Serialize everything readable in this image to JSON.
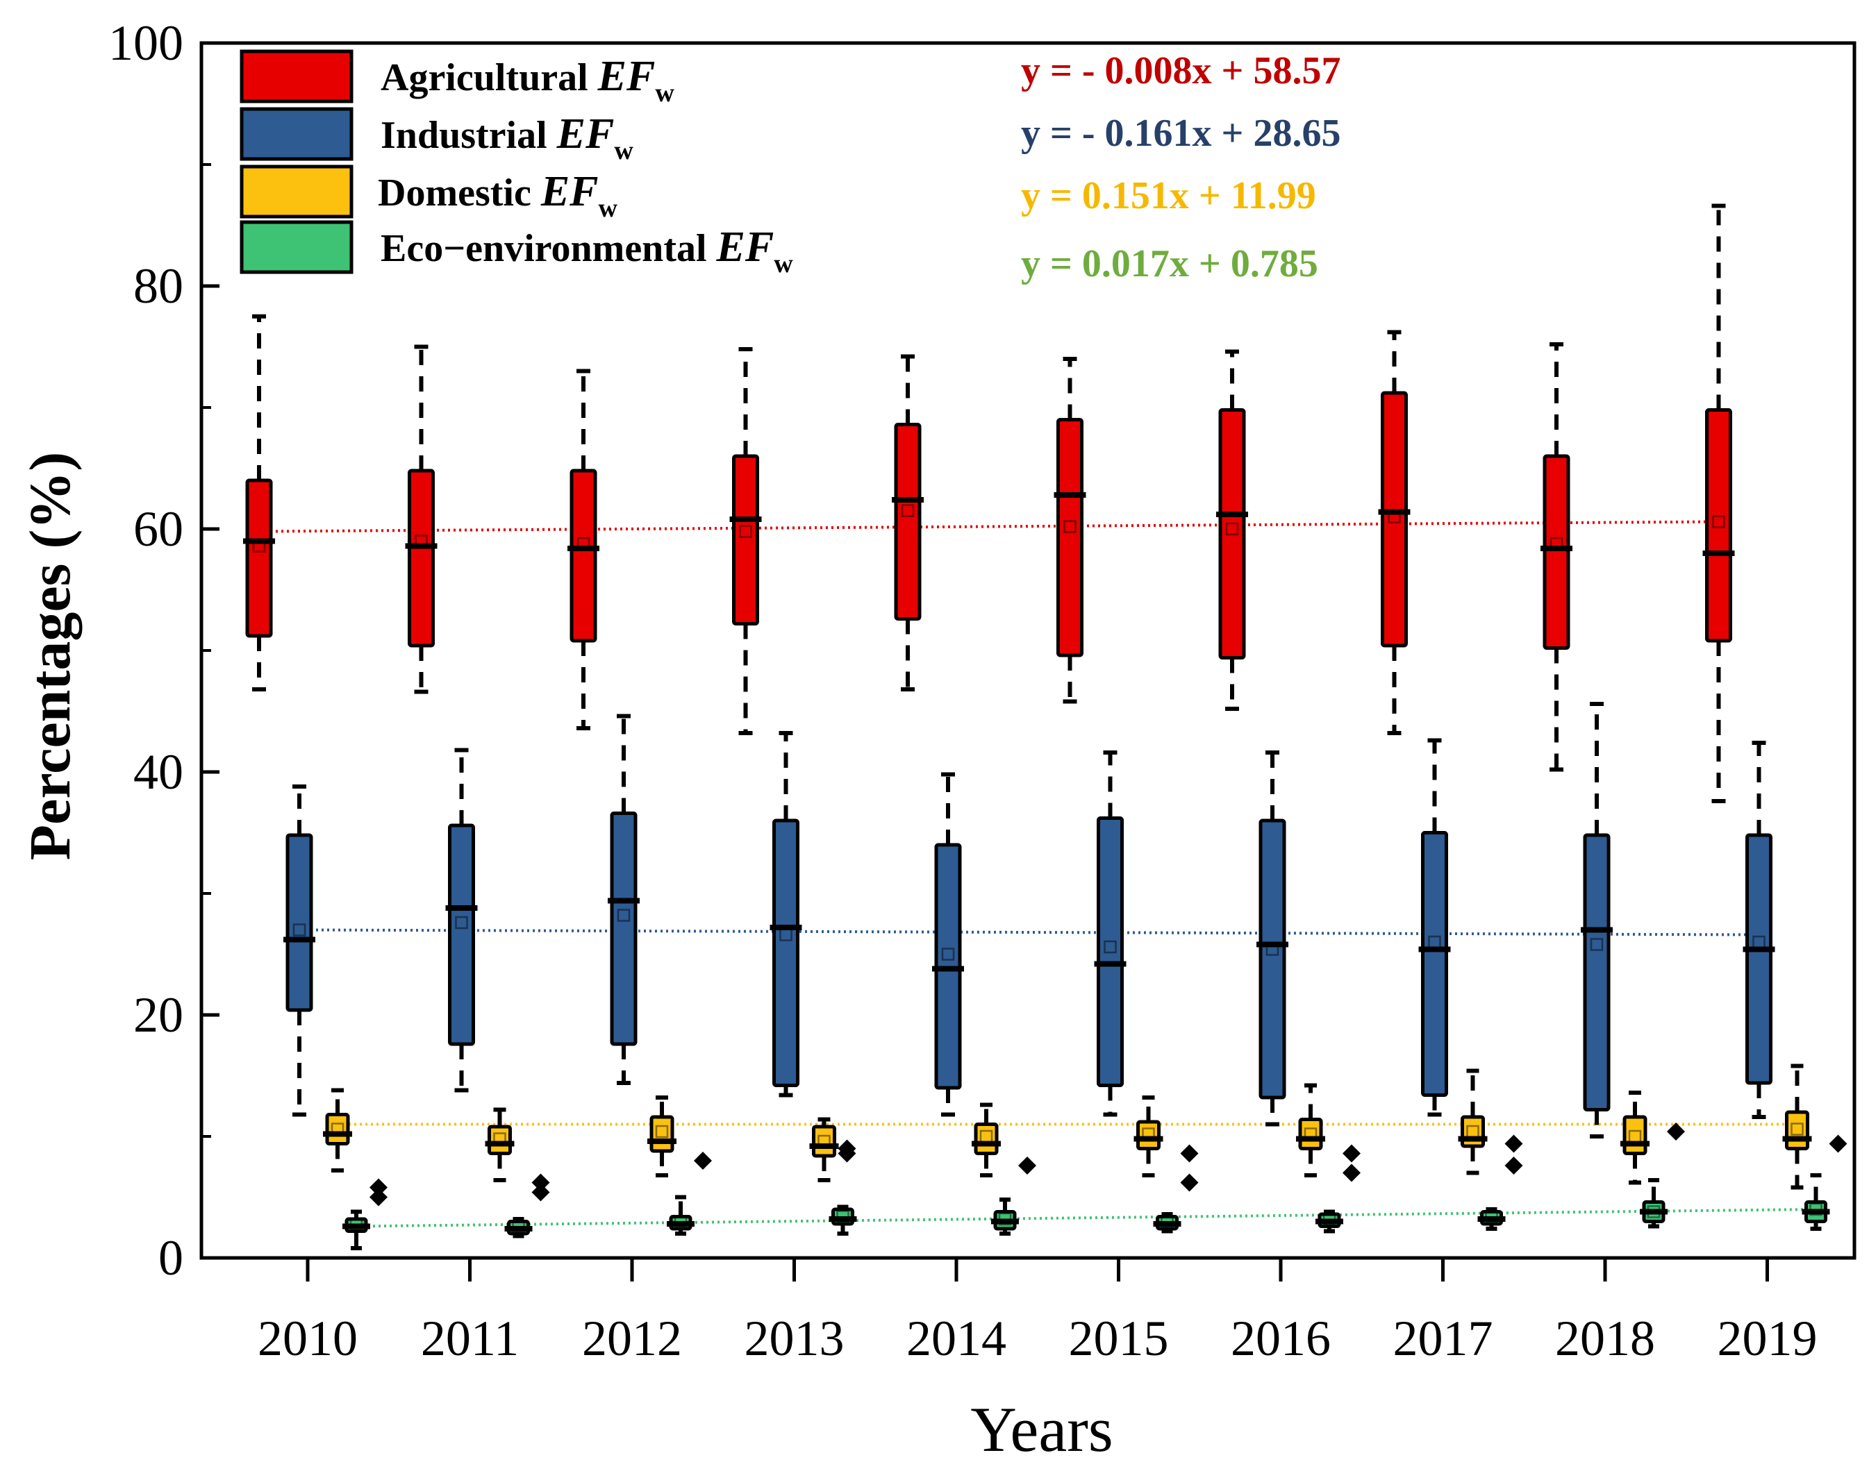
{
  "chart_data": {
    "type": "box",
    "title": "",
    "xlabel": "Years",
    "ylabel": "Percentages (%)",
    "ylim": [
      0,
      100
    ],
    "yticks": [
      0,
      20,
      40,
      60,
      80,
      100
    ],
    "categories": [
      "2010",
      "2011",
      "2012",
      "2013",
      "2014",
      "2015",
      "2016",
      "2017",
      "2018",
      "2019"
    ],
    "series": [
      {
        "name": "Agricultural",
        "subscript_label": "EF",
        "subscript": "w",
        "color": "#e60000",
        "equation": "y = - 0.008x + 58.57",
        "equation_color": "#c00000",
        "trend": [
          59.8,
          60.6
        ],
        "boxes": [
          {
            "min": 46.8,
            "q1": 51.2,
            "median": 59.0,
            "mean": 58.6,
            "q3": 64.0,
            "max": 77.5,
            "outliers": []
          },
          {
            "min": 46.6,
            "q1": 50.4,
            "median": 58.6,
            "mean": 59.0,
            "q3": 64.8,
            "max": 75.0,
            "outliers": []
          },
          {
            "min": 43.6,
            "q1": 50.8,
            "median": 58.4,
            "mean": 58.8,
            "q3": 64.8,
            "max": 73.0,
            "outliers": []
          },
          {
            "min": 43.2,
            "q1": 52.2,
            "median": 60.8,
            "mean": 59.8,
            "q3": 66.0,
            "max": 74.8,
            "outliers": []
          },
          {
            "min": 46.8,
            "q1": 52.6,
            "median": 62.4,
            "mean": 61.5,
            "q3": 68.6,
            "max": 74.2,
            "outliers": []
          },
          {
            "min": 45.8,
            "q1": 49.6,
            "median": 62.8,
            "mean": 60.2,
            "q3": 69.0,
            "max": 74.0,
            "outliers": []
          },
          {
            "min": 45.2,
            "q1": 49.4,
            "median": 61.2,
            "mean": 60.0,
            "q3": 69.8,
            "max": 74.6,
            "outliers": []
          },
          {
            "min": 43.2,
            "q1": 50.4,
            "median": 61.4,
            "mean": 61.0,
            "q3": 71.2,
            "max": 76.2,
            "outliers": []
          },
          {
            "min": 40.2,
            "q1": 50.2,
            "median": 58.4,
            "mean": 58.8,
            "q3": 66.0,
            "max": 75.2,
            "outliers": []
          },
          {
            "min": 37.6,
            "q1": 50.8,
            "median": 58.0,
            "mean": 60.6,
            "q3": 69.8,
            "max": 86.6,
            "outliers": []
          }
        ]
      },
      {
        "name": "Industrial",
        "subscript_label": "EF",
        "subscript": "w",
        "color": "#2e5b92",
        "equation": "y = - 0.161x + 28.65",
        "equation_color": "#27406a",
        "trend": [
          27.0,
          26.6
        ],
        "boxes": [
          {
            "min": 11.8,
            "q1": 20.4,
            "median": 26.2,
            "mean": 27.0,
            "q3": 34.8,
            "max": 38.8,
            "outliers": []
          },
          {
            "min": 13.8,
            "q1": 17.6,
            "median": 28.8,
            "mean": 27.6,
            "q3": 35.6,
            "max": 41.8,
            "outliers": []
          },
          {
            "min": 14.4,
            "q1": 17.6,
            "median": 29.4,
            "mean": 28.2,
            "q3": 36.6,
            "max": 44.6,
            "outliers": []
          },
          {
            "min": 13.4,
            "q1": 14.2,
            "median": 27.2,
            "mean": 26.6,
            "q3": 36.0,
            "max": 43.2,
            "outliers": []
          },
          {
            "min": 11.8,
            "q1": 14.0,
            "median": 23.8,
            "mean": 25.0,
            "q3": 34.0,
            "max": 39.8,
            "outliers": []
          },
          {
            "min": 11.8,
            "q1": 14.2,
            "median": 24.2,
            "mean": 25.6,
            "q3": 36.2,
            "max": 41.6,
            "outliers": []
          },
          {
            "min": 11.0,
            "q1": 13.2,
            "median": 25.8,
            "mean": 25.4,
            "q3": 36.0,
            "max": 41.6,
            "outliers": []
          },
          {
            "min": 11.8,
            "q1": 13.4,
            "median": 25.4,
            "mean": 26.0,
            "q3": 35.0,
            "max": 42.6,
            "outliers": []
          },
          {
            "min": 10.0,
            "q1": 12.2,
            "median": 27.0,
            "mean": 25.8,
            "q3": 34.8,
            "max": 45.6,
            "outliers": []
          },
          {
            "min": 11.6,
            "q1": 14.4,
            "median": 25.4,
            "mean": 26.0,
            "q3": 34.8,
            "max": 42.4,
            "outliers": []
          }
        ]
      },
      {
        "name": "Domestic",
        "subscript_label": "EF",
        "subscript": "w",
        "color": "#fcc10f",
        "equation": "y = 0.151x + 11.99",
        "equation_color": "#f5b800",
        "trend": [
          11.0,
          11.0
        ],
        "boxes": [
          {
            "min": 7.2,
            "q1": 9.4,
            "median": 10.2,
            "mean": 10.6,
            "q3": 11.8,
            "max": 13.8,
            "outliers": []
          },
          {
            "min": 6.4,
            "q1": 8.6,
            "median": 9.4,
            "mean": 9.8,
            "q3": 10.8,
            "max": 12.2,
            "outliers": []
          },
          {
            "min": 6.8,
            "q1": 8.8,
            "median": 9.6,
            "mean": 10.4,
            "q3": 11.6,
            "max": 13.2,
            "outliers": []
          },
          {
            "min": 6.4,
            "q1": 8.4,
            "median": 9.2,
            "mean": 9.6,
            "q3": 10.8,
            "max": 11.4,
            "outliers": [
              8.6,
              9.0
            ]
          },
          {
            "min": 6.8,
            "q1": 8.6,
            "median": 9.4,
            "mean": 10.0,
            "q3": 11.0,
            "max": 12.6,
            "outliers": []
          },
          {
            "min": 6.8,
            "q1": 9.0,
            "median": 9.8,
            "mean": 10.2,
            "q3": 11.2,
            "max": 13.2,
            "outliers": []
          },
          {
            "min": 6.8,
            "q1": 9.0,
            "median": 9.8,
            "mean": 10.2,
            "q3": 11.4,
            "max": 14.2,
            "outliers": []
          },
          {
            "min": 7.0,
            "q1": 9.2,
            "median": 9.8,
            "mean": 10.4,
            "q3": 11.6,
            "max": 15.4,
            "outliers": []
          },
          {
            "min": 6.2,
            "q1": 8.6,
            "median": 9.4,
            "mean": 10.0,
            "q3": 11.6,
            "max": 13.6,
            "outliers": []
          },
          {
            "min": 5.8,
            "q1": 9.0,
            "median": 9.8,
            "mean": 10.6,
            "q3": 12.0,
            "max": 15.8,
            "outliers": []
          }
        ]
      },
      {
        "name": "Eco−environmental",
        "subscript_label": "EF",
        "subscript": "w",
        "color": "#3ec273",
        "equation": "y = 0.017x + 0.785",
        "equation_color": "#6fac3e",
        "trend": [
          2.6,
          4.0
        ],
        "boxes": [
          {
            "min": 0.8,
            "q1": 2.2,
            "median": 2.6,
            "mean": 2.8,
            "q3": 3.2,
            "max": 3.8,
            "outliers": [
              5.0,
              5.8
            ]
          },
          {
            "min": 1.8,
            "q1": 2.0,
            "median": 2.4,
            "mean": 2.6,
            "q3": 3.0,
            "max": 3.2,
            "outliers": [
              5.4,
              6.2
            ]
          },
          {
            "min": 2.0,
            "q1": 2.4,
            "median": 2.8,
            "mean": 3.0,
            "q3": 3.4,
            "max": 5.0,
            "outliers": [
              8.0
            ]
          },
          {
            "min": 2.0,
            "q1": 2.8,
            "median": 3.2,
            "mean": 3.4,
            "q3": 4.0,
            "max": 4.2,
            "outliers": []
          },
          {
            "min": 2.0,
            "q1": 2.4,
            "median": 3.0,
            "mean": 3.2,
            "q3": 3.8,
            "max": 4.8,
            "outliers": [
              7.6
            ]
          },
          {
            "min": 2.2,
            "q1": 2.4,
            "median": 2.8,
            "mean": 3.0,
            "q3": 3.4,
            "max": 3.6,
            "outliers": [
              6.2,
              8.6
            ]
          },
          {
            "min": 2.2,
            "q1": 2.6,
            "median": 3.0,
            "mean": 3.2,
            "q3": 3.6,
            "max": 3.8,
            "outliers": [
              7.0,
              8.6
            ]
          },
          {
            "min": 2.4,
            "q1": 2.8,
            "median": 3.2,
            "mean": 3.4,
            "q3": 3.8,
            "max": 4.0,
            "outliers": [
              7.6,
              9.4
            ]
          },
          {
            "min": 2.6,
            "q1": 3.0,
            "median": 3.8,
            "mean": 3.8,
            "q3": 4.6,
            "max": 6.4,
            "outliers": [
              10.4
            ]
          },
          {
            "min": 2.4,
            "q1": 3.0,
            "median": 3.8,
            "mean": 4.0,
            "q3": 4.6,
            "max": 6.8,
            "outliers": [
              9.4
            ]
          }
        ]
      }
    ]
  }
}
